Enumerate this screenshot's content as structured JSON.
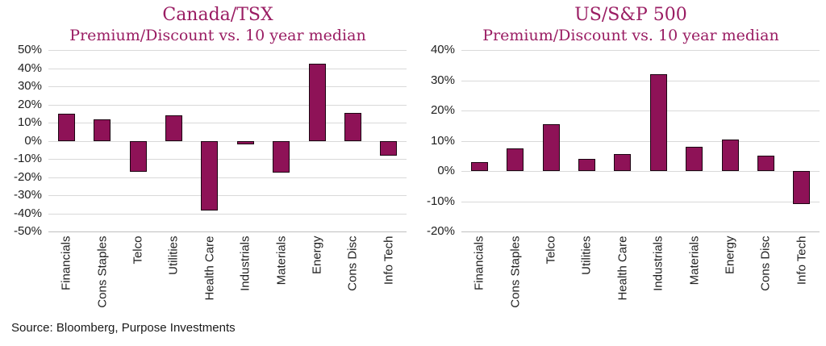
{
  "source_note": "Source: Bloomberg, Purpose Investments",
  "colors": {
    "bar_fill": "#8e1257",
    "bar_border": "#1c0512",
    "title": "#9a1d63",
    "gridline": "#d9d9d9",
    "axis_line": "#bfbfbf",
    "label_text": "#1f1f1f"
  },
  "chart_data": [
    {
      "type": "bar",
      "title": "Canada/TSX",
      "subtitle": "Premium/Discount vs. 10 year median",
      "categories": [
        "Financials",
        "Cons Staples",
        "Telco",
        "Utilities",
        "Health Care",
        "Industrials",
        "Materials",
        "Energy",
        "Cons Disc",
        "Info Tech"
      ],
      "values": [
        15,
        12,
        -17,
        14,
        -38.5,
        -2,
        -17.5,
        42.5,
        15.5,
        -8
      ],
      "ylabel": "",
      "xlabel": "",
      "ylim": [
        -50,
        50
      ],
      "ytick_step": 10,
      "ytick_format": "percent",
      "grid": true,
      "legend": false
    },
    {
      "type": "bar",
      "title": "US/S&P 500",
      "subtitle": "Premium/Discount vs. 10 year median",
      "categories": [
        "Financials",
        "Cons Staples",
        "Telco",
        "Utilities",
        "Health Care",
        "Industrials",
        "Materials",
        "Energy",
        "Cons Disc",
        "Info Tech"
      ],
      "values": [
        3,
        7.5,
        15.5,
        4,
        5.5,
        32,
        8,
        10.5,
        5,
        -11
      ],
      "ylabel": "",
      "xlabel": "",
      "ylim": [
        -20,
        40
      ],
      "ytick_step": 10,
      "ytick_format": "percent",
      "grid": true,
      "legend": false
    }
  ]
}
